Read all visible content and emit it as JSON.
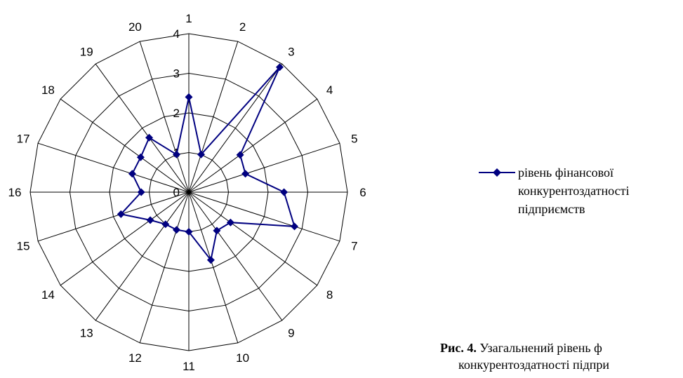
{
  "chart_data": {
    "type": "radar",
    "categories": [
      "1",
      "2",
      "3",
      "4",
      "5",
      "6",
      "7",
      "8",
      "9",
      "10",
      "11",
      "12",
      "13",
      "14",
      "15",
      "16",
      "17",
      "18",
      "19",
      "20"
    ],
    "rlim": [
      0,
      4
    ],
    "ticks": [
      "0",
      "1",
      "2",
      "3",
      "4"
    ],
    "grid": true,
    "series": [
      {
        "name": "рівень фінансової конкурентоздатності підприємств",
        "color": "#000080",
        "values": [
          2.4,
          1.0,
          3.9,
          1.6,
          1.5,
          2.4,
          2.8,
          1.3,
          1.2,
          1.8,
          1.0,
          1.0,
          1.0,
          1.2,
          1.8,
          1.2,
          1.5,
          1.5,
          1.7,
          1.0
        ]
      }
    ],
    "legend_position": "right"
  },
  "legend": {
    "lines": [
      "рівень фінансової",
      "конкурентоздатності",
      "підприємств"
    ]
  },
  "caption": {
    "prefix": "Рис. 4.",
    "line1": "Узагальнений рівень ф",
    "line2": "конкурентоздатності підпри"
  }
}
